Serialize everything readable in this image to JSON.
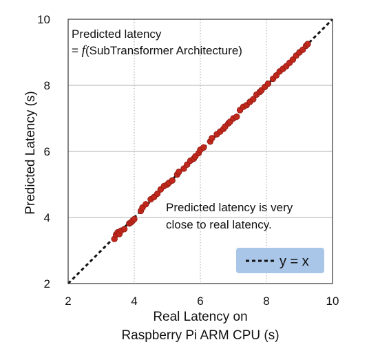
{
  "chart_data": {
    "type": "scatter",
    "title": "",
    "xlabel_line1": "Real Latency on",
    "xlabel_line2": "Raspberry Pi ARM CPU (s)",
    "ylabel": "Predicted Latency (s)",
    "xlim": [
      2,
      10
    ],
    "ylim": [
      2,
      10
    ],
    "xticks": [
      "2",
      "4",
      "6",
      "8",
      "10"
    ],
    "yticks": [
      "2",
      "4",
      "6",
      "8",
      "10"
    ],
    "grid": "vertical dotted at x ticks, horizontal solid at y ticks",
    "annotation_top_line1": "Predicted latency",
    "annotation_top_eq": "= ",
    "annotation_top_f": "f",
    "annotation_top_rest": "(SubTransformer Architecture)",
    "annotation_mid_line1": "Predicted latency is very",
    "annotation_mid_line2": "close to real latency.",
    "legend_label": "y = x",
    "legend_placement": "bottom-right",
    "colors": {
      "points": "#c0281c",
      "point_edge": "#8e1a12",
      "line": "#111111",
      "legend_bg": "#a9c6e8",
      "grid": "#b0b0b0"
    },
    "points": [
      [
        3.4,
        3.35
      ],
      [
        3.45,
        3.48
      ],
      [
        3.5,
        3.55
      ],
      [
        3.55,
        3.5
      ],
      [
        3.6,
        3.6
      ],
      [
        3.7,
        3.65
      ],
      [
        3.85,
        3.82
      ],
      [
        3.9,
        3.85
      ],
      [
        3.95,
        3.9
      ],
      [
        4.0,
        3.95
      ],
      [
        4.2,
        4.2
      ],
      [
        4.25,
        4.3
      ],
      [
        4.35,
        4.4
      ],
      [
        4.5,
        4.55
      ],
      [
        4.6,
        4.62
      ],
      [
        4.7,
        4.72
      ],
      [
        4.8,
        4.85
      ],
      [
        4.9,
        4.95
      ],
      [
        5.0,
        5.0
      ],
      [
        5.05,
        5.05
      ],
      [
        5.15,
        5.12
      ],
      [
        5.3,
        5.3
      ],
      [
        5.35,
        5.38
      ],
      [
        5.5,
        5.48
      ],
      [
        5.6,
        5.6
      ],
      [
        5.7,
        5.72
      ],
      [
        5.8,
        5.78
      ],
      [
        5.85,
        5.85
      ],
      [
        5.95,
        5.95
      ],
      [
        6.0,
        6.05
      ],
      [
        6.1,
        6.12
      ],
      [
        6.3,
        6.3
      ],
      [
        6.35,
        6.4
      ],
      [
        6.5,
        6.52
      ],
      [
        6.6,
        6.6
      ],
      [
        6.7,
        6.68
      ],
      [
        6.75,
        6.75
      ],
      [
        6.85,
        6.85
      ],
      [
        6.9,
        6.9
      ],
      [
        7.0,
        7.0
      ],
      [
        7.1,
        7.05
      ],
      [
        7.2,
        7.25
      ],
      [
        7.3,
        7.35
      ],
      [
        7.4,
        7.4
      ],
      [
        7.5,
        7.5
      ],
      [
        7.6,
        7.58
      ],
      [
        7.7,
        7.72
      ],
      [
        7.8,
        7.8
      ],
      [
        7.85,
        7.85
      ],
      [
        7.95,
        7.95
      ],
      [
        8.05,
        8.05
      ],
      [
        8.2,
        8.2
      ],
      [
        8.3,
        8.3
      ],
      [
        8.4,
        8.42
      ],
      [
        8.5,
        8.5
      ],
      [
        8.6,
        8.58
      ],
      [
        8.7,
        8.68
      ],
      [
        8.8,
        8.78
      ],
      [
        8.9,
        8.9
      ],
      [
        9.0,
        9.0
      ],
      [
        9.1,
        9.08
      ],
      [
        9.2,
        9.2
      ],
      [
        9.25,
        9.25
      ]
    ]
  }
}
